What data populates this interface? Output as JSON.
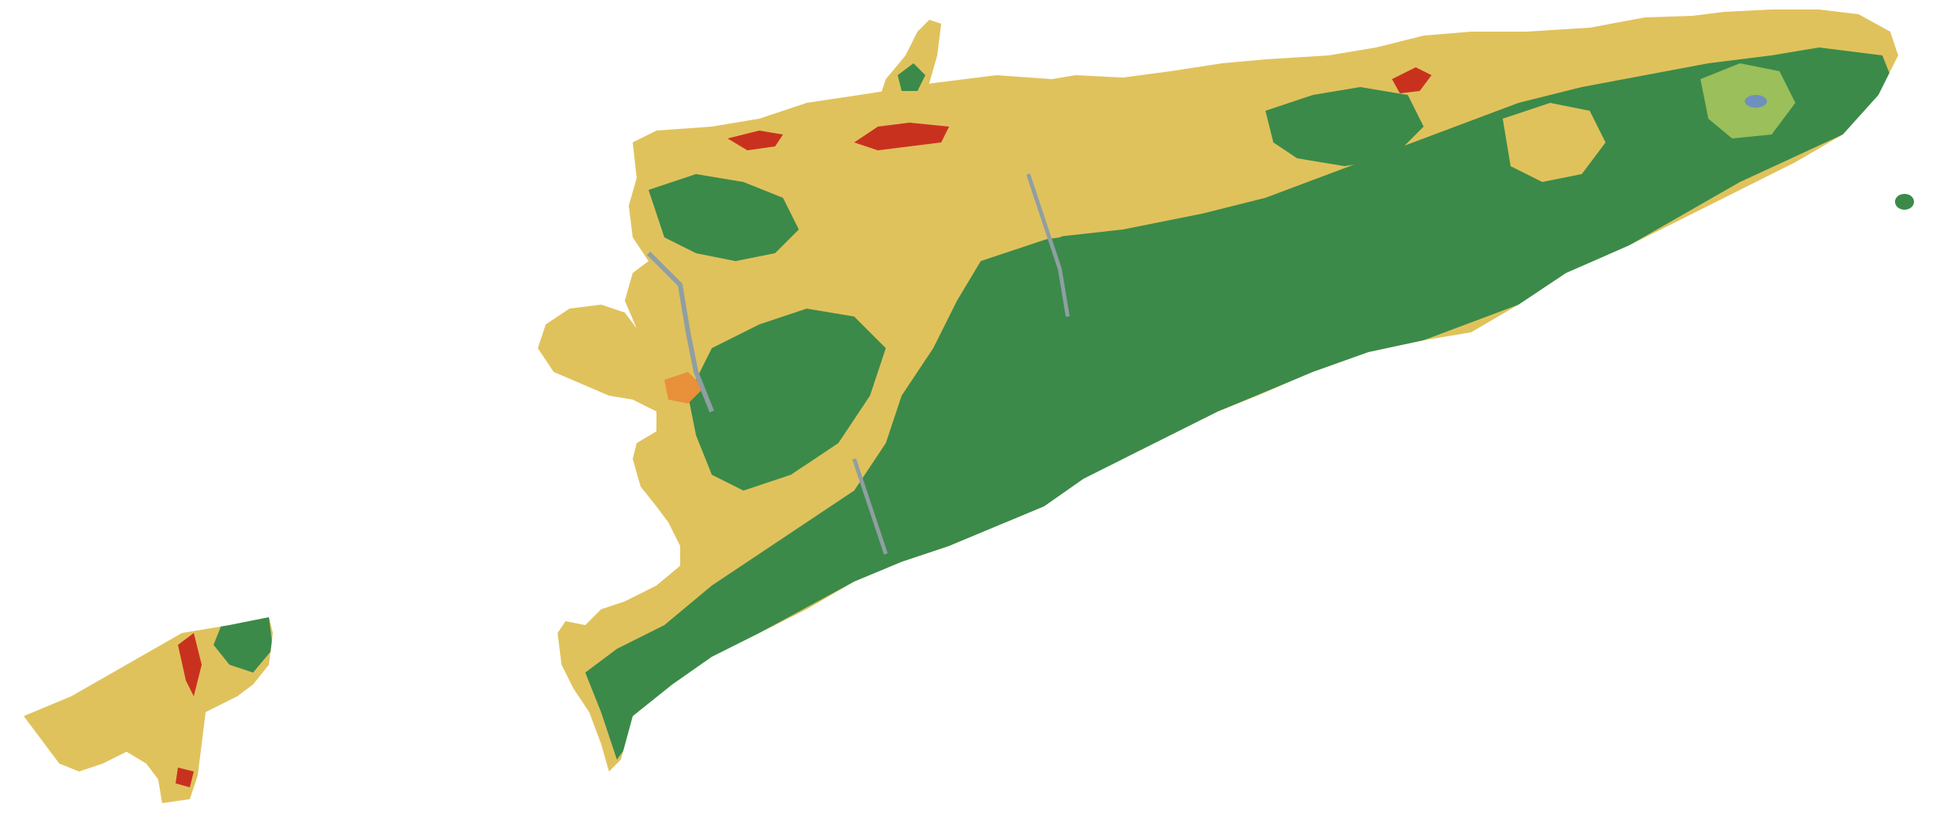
{
  "map": {
    "type": "land-cover-raster",
    "background_color": "#ffffff",
    "land_cover_colors": {
      "grassland_cropland": "#e0c25c",
      "forest": "#3b8a4a",
      "built_up": "#c9311f",
      "bare_or_shrub": "#e8903a",
      "wetland_or_riverbed": "#8f9fa3",
      "water": "#6f8fbf",
      "shrub_light": "#9bbf5a"
    },
    "visible_text": []
  }
}
